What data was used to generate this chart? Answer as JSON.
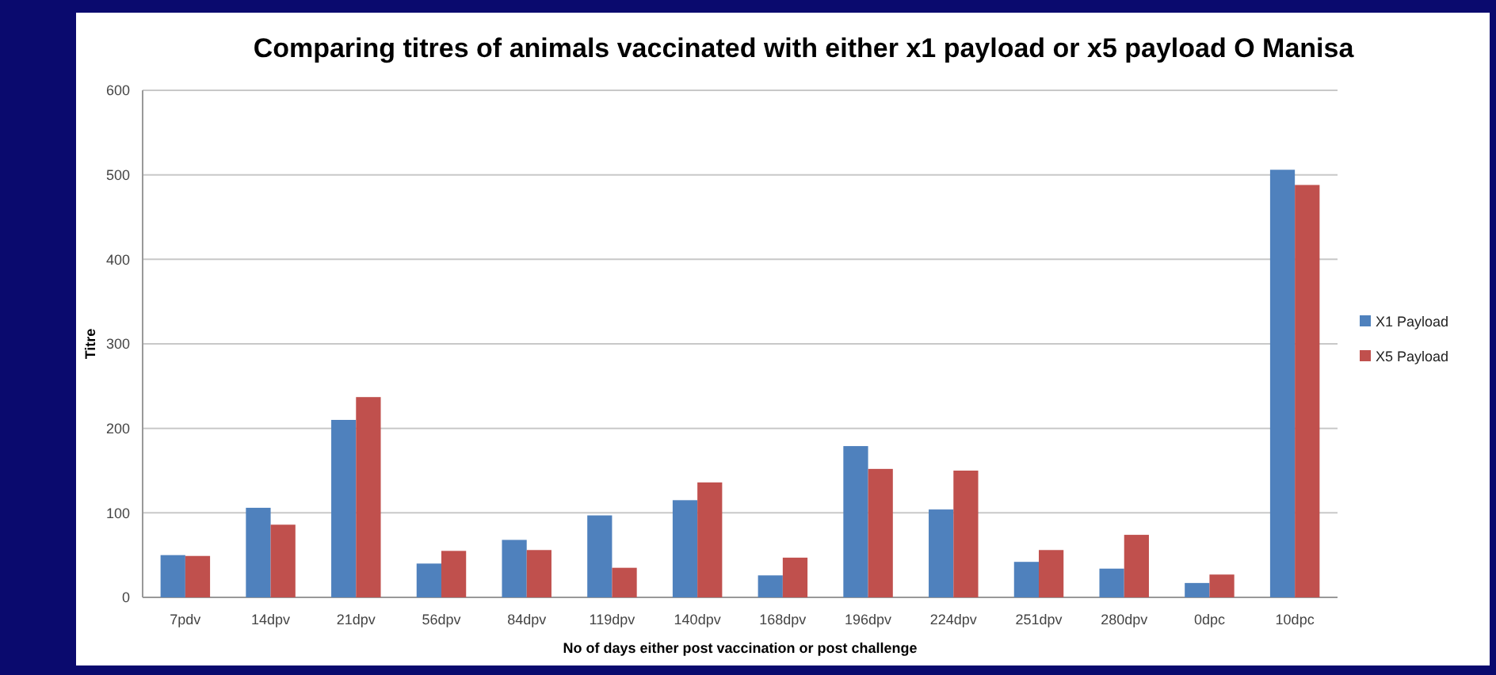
{
  "chart_data": {
    "type": "bar",
    "title": "Comparing titres of animals vaccinated with either x1 payload or x5 payload O Manisa",
    "xlabel": "No of days either post vaccination or post challenge",
    "ylabel": "Titre",
    "categories": [
      "7pdv",
      "14dpv",
      "21dpv",
      "56dpv",
      "84dpv",
      "119dpv",
      "140dpv",
      "168dpv",
      "196dpv",
      "224dpv",
      "251dpv",
      "280dpv",
      "0dpc",
      "10dpc"
    ],
    "series": [
      {
        "name": "X1 Payload",
        "color": "#4f81bd",
        "values": [
          50,
          106,
          210,
          40,
          68,
          97,
          115,
          26,
          179,
          104,
          42,
          34,
          17,
          506
        ]
      },
      {
        "name": "X5 Payload",
        "color": "#c0504d",
        "values": [
          49,
          86,
          237,
          55,
          56,
          35,
          136,
          47,
          152,
          150,
          56,
          74,
          27,
          488
        ]
      }
    ],
    "ylim": [
      0,
      600
    ],
    "yticks": [
      0,
      100,
      200,
      300,
      400,
      500,
      600
    ],
    "grid": "y",
    "legend": "right"
  }
}
